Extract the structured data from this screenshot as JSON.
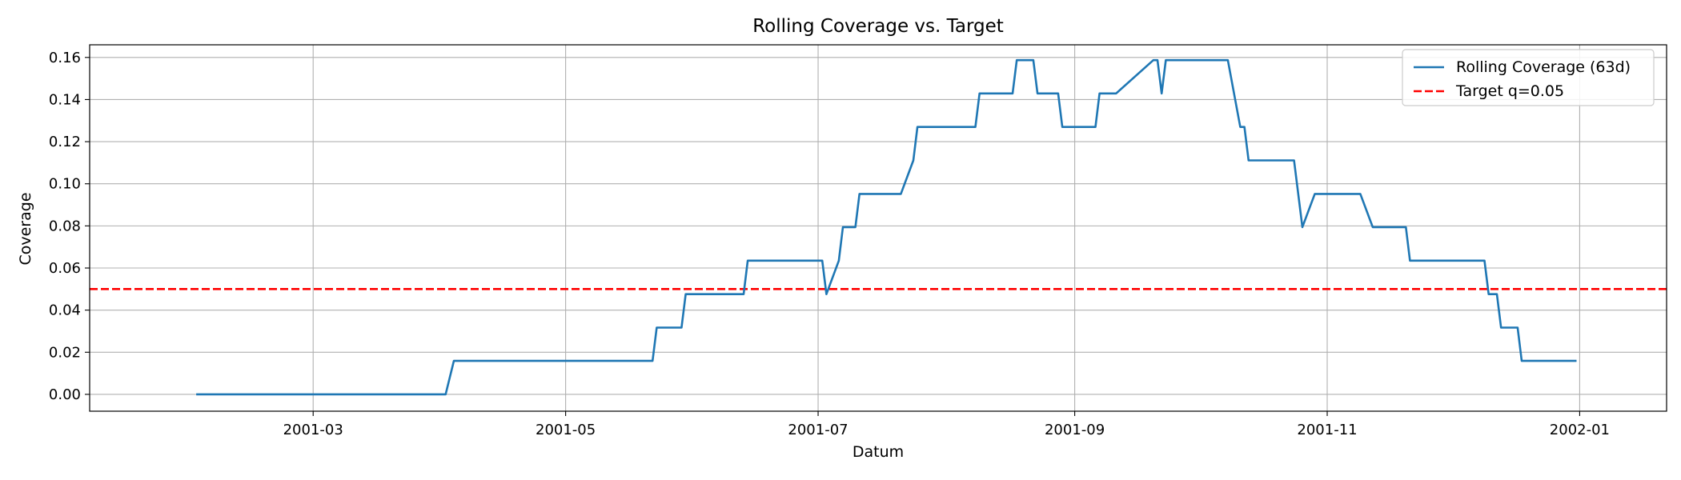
{
  "chart_data": {
    "type": "line",
    "title": "Rolling Coverage vs. Target",
    "xlabel": "Datum",
    "ylabel": "Coverage",
    "xlim": [
      "2001-01-06",
      "2002-01-22"
    ],
    "ylim": [
      -0.008,
      0.166
    ],
    "grid": true,
    "legend_position": "top-right",
    "x_ticks": [
      "2001-03",
      "2001-05",
      "2001-07",
      "2001-09",
      "2001-11",
      "2002-01"
    ],
    "y_ticks": [
      "0.00",
      "0.02",
      "0.04",
      "0.06",
      "0.08",
      "0.10",
      "0.12",
      "0.14",
      "0.16"
    ],
    "series": [
      {
        "name": "Rolling Coverage (63d)",
        "color": "#1f77b4",
        "style": "solid",
        "points": [
          [
            "2001-02-01",
            0.0
          ],
          [
            "2001-04-02",
            0.0
          ],
          [
            "2001-04-04",
            0.0159
          ],
          [
            "2001-05-22",
            0.0159
          ],
          [
            "2001-05-23",
            0.0317
          ],
          [
            "2001-05-29",
            0.0317
          ],
          [
            "2001-05-30",
            0.0476
          ],
          [
            "2001-06-13",
            0.0476
          ],
          [
            "2001-06-14",
            0.0635
          ],
          [
            "2001-07-02",
            0.0635
          ],
          [
            "2001-07-03",
            0.0476
          ],
          [
            "2001-07-06",
            0.0635
          ],
          [
            "2001-07-07",
            0.0794
          ],
          [
            "2001-07-10",
            0.0794
          ],
          [
            "2001-07-11",
            0.0952
          ],
          [
            "2001-07-21",
            0.0952
          ],
          [
            "2001-07-24",
            0.1111
          ],
          [
            "2001-07-25",
            0.127
          ],
          [
            "2001-08-08",
            0.127
          ],
          [
            "2001-08-09",
            0.1429
          ],
          [
            "2001-08-17",
            0.1429
          ],
          [
            "2001-08-18",
            0.1587
          ],
          [
            "2001-08-22",
            0.1587
          ],
          [
            "2001-08-23",
            0.1429
          ],
          [
            "2001-08-28",
            0.1429
          ],
          [
            "2001-08-29",
            0.127
          ],
          [
            "2001-09-06",
            0.127
          ],
          [
            "2001-09-07",
            0.1429
          ],
          [
            "2001-09-11",
            0.1429
          ],
          [
            "2001-09-20",
            0.1587
          ],
          [
            "2001-09-21",
            0.1587
          ],
          [
            "2001-09-22",
            0.1429
          ],
          [
            "2001-09-23",
            0.1587
          ],
          [
            "2001-10-08",
            0.1587
          ],
          [
            "2001-10-11",
            0.127
          ],
          [
            "2001-10-12",
            0.127
          ],
          [
            "2001-10-13",
            0.1111
          ],
          [
            "2001-10-24",
            0.1111
          ],
          [
            "2001-10-26",
            0.0794
          ],
          [
            "2001-10-29",
            0.0952
          ],
          [
            "2001-11-09",
            0.0952
          ],
          [
            "2001-11-12",
            0.0794
          ],
          [
            "2001-11-20",
            0.0794
          ],
          [
            "2001-11-21",
            0.0635
          ],
          [
            "2001-12-09",
            0.0635
          ],
          [
            "2001-12-10",
            0.0476
          ],
          [
            "2001-12-12",
            0.0476
          ],
          [
            "2001-12-13",
            0.0317
          ],
          [
            "2001-12-17",
            0.0317
          ],
          [
            "2001-12-18",
            0.0159
          ],
          [
            "2001-12-31",
            0.0159
          ]
        ]
      },
      {
        "name": "Target q=0.05",
        "color": "#ff0000",
        "style": "dashed",
        "constant": 0.05
      }
    ]
  }
}
